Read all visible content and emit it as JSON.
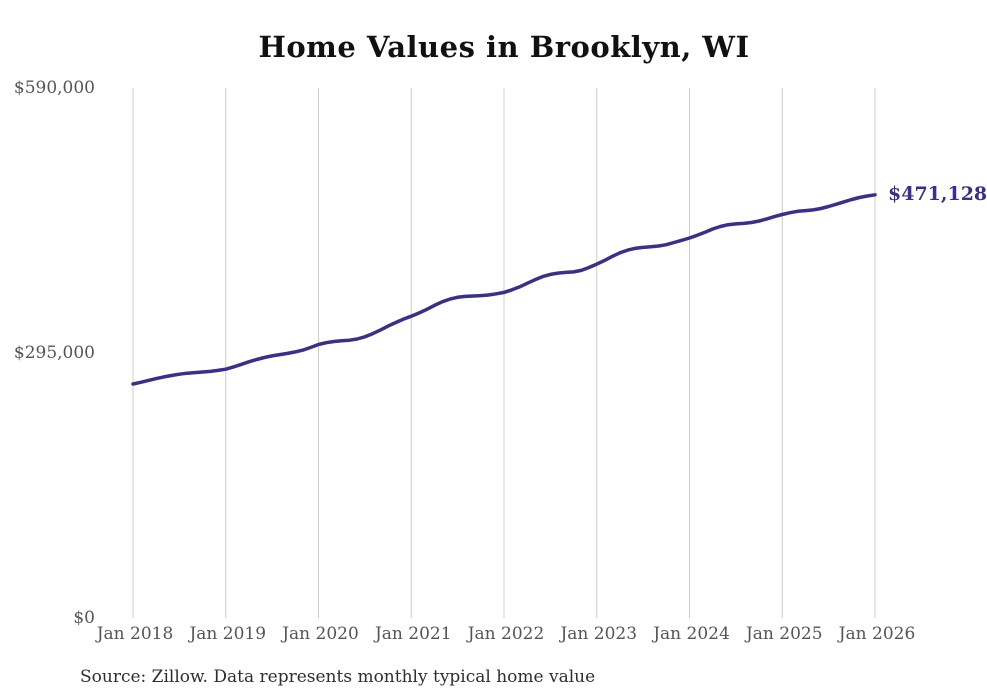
{
  "chart_data": {
    "type": "line",
    "title": "Home Values in Brooklyn, WI",
    "xlabel": "",
    "ylabel": "",
    "ylim": [
      0,
      590000
    ],
    "grid": "vertical-only",
    "start_month": "2018-01",
    "end_month": "2026-01",
    "frequency": "monthly",
    "values": [
      260500,
      262400,
      264500,
      266500,
      268400,
      270000,
      271400,
      272500,
      273200,
      273800,
      274500,
      275600,
      277000,
      279500,
      282300,
      285200,
      287800,
      290000,
      291800,
      293200,
      294600,
      296200,
      298200,
      301200,
      304500,
      306500,
      307800,
      308600,
      309200,
      310600,
      313000,
      316500,
      320500,
      325000,
      329000,
      332700,
      336000,
      339500,
      343500,
      348000,
      352000,
      355000,
      357000,
      358000,
      358400,
      358900,
      359600,
      360900,
      362500,
      365200,
      368600,
      372600,
      376500,
      380000,
      382500,
      384000,
      384700,
      385300,
      386900,
      390200,
      394000,
      398000,
      402500,
      406500,
      409500,
      411500,
      412600,
      413300,
      414100,
      415600,
      418000,
      420500,
      423000,
      426000,
      429500,
      433000,
      435800,
      437800,
      438700,
      439300,
      440300,
      441900,
      444300,
      446800,
      449200,
      451200,
      452700,
      453500,
      454300,
      455900,
      458100,
      460600,
      463300,
      465900,
      468100,
      469800,
      471128
    ],
    "x_tick_labels": [
      "Jan 2018",
      "Jan 2019",
      "Jan 2020",
      "Jan 2021",
      "Jan 2022",
      "Jan 2023",
      "Jan 2024",
      "Jan 2025",
      "Jan 2026"
    ],
    "x_tick_month_interval": 12,
    "y_ticks": [
      {
        "label": "$0",
        "value": 0
      },
      {
        "label": "$295,000",
        "value": 295000
      },
      {
        "label": "$590,000",
        "value": 590000
      }
    ],
    "end_label": "$471,128",
    "last_value": 471128,
    "legend": "none",
    "colors": {
      "line": "#38308a",
      "end_label": "#38308a",
      "gridline": "#cccccc",
      "tick_label": "#555555",
      "title": "#111111",
      "source": "#2e2e2e",
      "background": "#ffffff"
    }
  },
  "source_note": "Source: Zillow. Data represents monthly typical home value"
}
